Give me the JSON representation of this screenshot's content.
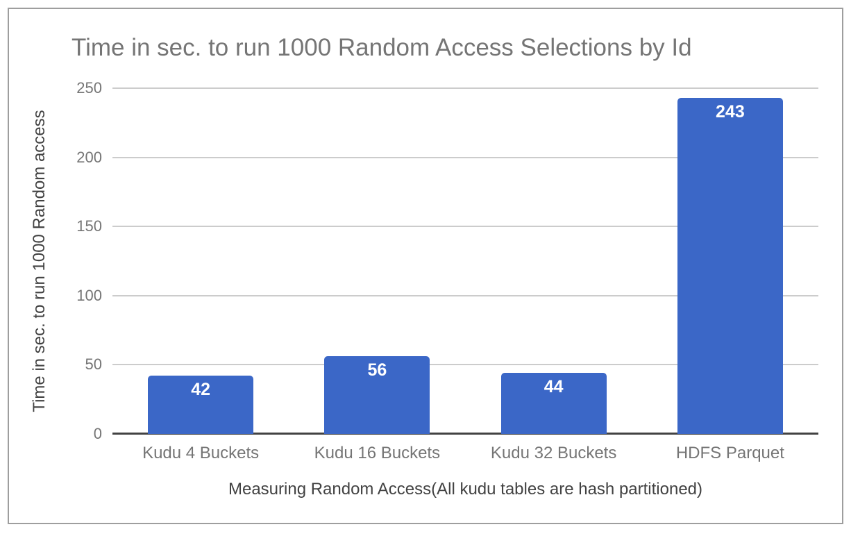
{
  "frame": {
    "border_color": "#9e9e9e",
    "background": "#ffffff"
  },
  "chart_data": {
    "type": "bar",
    "title": "Time in sec. to run 1000 Random Access Selections by Id",
    "categories": [
      "Kudu 4 Buckets",
      "Kudu 16 Buckets",
      "Kudu 32 Buckets",
      "HDFS Parquet"
    ],
    "values": [
      42,
      56,
      44,
      243
    ],
    "xlabel": "Measuring Random Access(All kudu tables are hash partitioned)",
    "ylabel": "Time in sec. to run 1000 Random access",
    "ylim": [
      0,
      250
    ],
    "yticks": [
      0,
      50,
      100,
      150,
      200,
      250
    ],
    "grid": "horizontal",
    "legend": "none",
    "colors": {
      "bar": "#3b67c7",
      "value_label": "#ffffff",
      "title": "#757575",
      "tick_label": "#757575",
      "category_label": "#757575",
      "axis_title": "#424242",
      "gridline": "#cccccc",
      "baseline": "#424242"
    }
  }
}
